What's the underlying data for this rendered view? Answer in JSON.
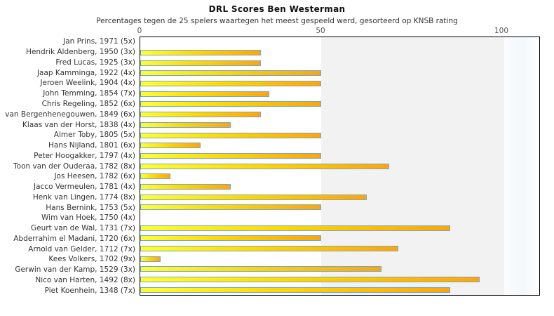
{
  "chart_data": {
    "type": "bar",
    "orientation": "horizontal",
    "title": "DRL Scores Ben Westerman",
    "subtitle": "Percentages tegen de 25 spelers waartegen het meest gespeeld werd, gesorteerd op KNSB rating",
    "xlabel": "",
    "ylabel": "",
    "xlim": [
      0,
      110.7
    ],
    "xticks": [
      0,
      50,
      100
    ],
    "shaded_band": [
      50,
      100.6
    ],
    "grid": false,
    "legend": false,
    "bar_fill_gradient": [
      "#ffff2e",
      "#ffa506"
    ],
    "bar_border_color": "#6fa8dc",
    "band_color": "#f2f2f2",
    "categories": [
      "Jan Prins, 1971 (5x)",
      "Hendrik Aldenberg, 1950 (3x)",
      "Fred Lucas, 1925 (3x)",
      "Jaap Kamminga, 1922 (4x)",
      "Jeroen Weelink, 1904 (4x)",
      "John Temming, 1854 (7x)",
      "Chris Regeling, 1852 (6x)",
      "van Bergenhenegouwen, 1849 (6x)",
      "Klaas van der Horst, 1838 (4x)",
      "Almer Toby, 1805 (5x)",
      "Hans Nijland, 1801 (6x)",
      "Peter Hoogakker, 1797 (4x)",
      "Toon van der Ouderaa, 1782 (8x)",
      "Jos Heesen, 1782 (6x)",
      "Jacco Vermeulen, 1781 (4x)",
      "Henk van Lingen, 1774 (8x)",
      "Hans Bernink, 1753 (5x)",
      "Wim van Hoek, 1750 (4x)",
      "Geurt van de Wal, 1731 (7x)",
      "Abderrahim el Madani, 1720 (6x)",
      "Arnold van Gelder, 1712 (7x)",
      "Kees Volkers, 1702 (9x)",
      "Gerwin van der Kamp, 1529 (3x)",
      "Nico van Harten, 1492 (8x)",
      "Piet Koenhein, 1348 (7x)"
    ],
    "values": [
      0,
      33.3,
      33.3,
      50,
      50,
      35.7,
      50,
      33.3,
      25,
      50,
      16.7,
      50,
      68.75,
      8.3,
      25,
      62.5,
      50,
      0,
      85.7,
      50,
      71.4,
      5.6,
      66.7,
      93.75,
      85.7
    ]
  }
}
